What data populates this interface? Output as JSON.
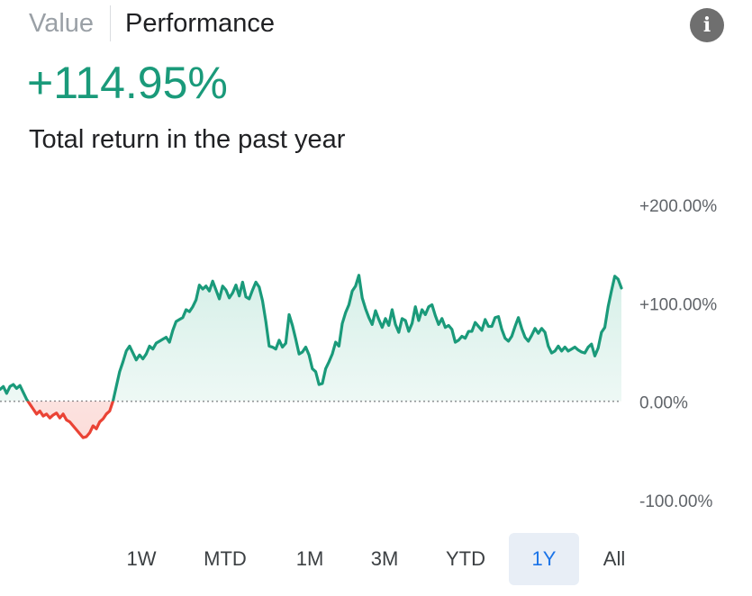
{
  "tabs": {
    "value": "Value",
    "performance": "Performance"
  },
  "info_icon": {
    "name": "info-icon",
    "glyph": "i"
  },
  "headline": {
    "value": "+114.95%",
    "subtitle": "Total return in the past year"
  },
  "colors": {
    "positive": "#1a9a7a",
    "negative": "#ea4335",
    "fill_pos": "#e6f4f0",
    "fill_neg": "#fde6e4"
  },
  "ranges": [
    "1W",
    "MTD",
    "1M",
    "3M",
    "YTD",
    "1Y",
    "All"
  ],
  "selected_range": "1Y",
  "chart_data": {
    "type": "area",
    "title": "",
    "xlabel": "",
    "ylabel": "",
    "ylim": [
      -100,
      200
    ],
    "yticks": [
      200,
      100,
      0,
      -100
    ],
    "ytick_labels": [
      "+200.00%",
      "+100.00%",
      "0.00%",
      "-100.00%"
    ],
    "baseline": 0,
    "series": [
      {
        "values": [
          12,
          15,
          8,
          15,
          17,
          13,
          16,
          9,
          2,
          -3,
          -8,
          -13,
          -10,
          -15,
          -13,
          -17,
          -14,
          -12,
          -17,
          -13,
          -19,
          -21,
          -25,
          -29,
          -33,
          -37,
          -36,
          -32,
          -25,
          -28,
          -21,
          -18,
          -13,
          -10,
          0,
          15,
          30,
          40,
          51,
          56,
          49,
          42,
          47,
          43,
          48,
          56,
          53,
          59,
          61,
          63,
          65,
          60,
          72,
          81,
          83,
          85,
          93,
          91,
          96,
          103,
          118,
          114,
          117,
          112,
          122,
          113,
          104,
          117,
          113,
          105,
          110,
          118,
          107,
          121,
          106,
          104,
          113,
          121,
          116,
          102,
          81,
          56,
          55,
          53,
          62,
          55,
          59,
          88,
          77,
          63,
          48,
          50,
          55,
          47,
          33,
          30,
          17,
          18,
          33,
          40,
          48,
          60,
          56,
          79,
          90,
          98,
          112,
          117,
          128,
          105,
          94,
          85,
          78,
          92,
          83,
          75,
          84,
          77,
          93,
          78,
          70,
          84,
          82,
          71,
          79,
          96,
          82,
          93,
          88,
          96,
          98,
          87,
          78,
          84,
          75,
          77,
          73,
          60,
          62,
          66,
          64,
          71,
          71,
          80,
          76,
          72,
          83,
          76,
          76,
          85,
          86,
          73,
          64,
          61,
          66,
          76,
          85,
          74,
          65,
          61,
          67,
          74,
          69,
          74,
          70,
          56,
          49,
          51,
          56,
          51,
          55,
          51,
          53,
          55,
          52,
          50,
          49,
          55,
          58,
          46,
          54,
          70,
          75,
          96,
          112,
          127,
          124,
          115
        ]
      }
    ],
    "grid": false,
    "legend": "none"
  }
}
